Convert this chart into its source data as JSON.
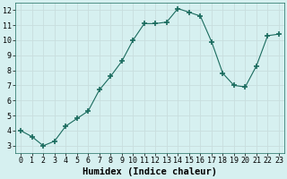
{
  "x": [
    0,
    1,
    2,
    3,
    4,
    5,
    6,
    7,
    8,
    9,
    10,
    11,
    12,
    13,
    14,
    15,
    16,
    17,
    18,
    19,
    20,
    21,
    22,
    23
  ],
  "y": [
    4.0,
    3.6,
    3.0,
    3.3,
    4.3,
    4.8,
    5.3,
    6.7,
    7.6,
    8.6,
    10.0,
    11.1,
    11.1,
    11.2,
    12.1,
    11.85,
    11.6,
    9.9,
    7.8,
    7.0,
    6.9,
    8.3,
    10.3,
    10.4
  ],
  "xlabel": "Humidex (Indice chaleur)",
  "xlim": [
    -0.5,
    23.5
  ],
  "ylim": [
    2.5,
    12.5
  ],
  "yticks": [
    3,
    4,
    5,
    6,
    7,
    8,
    9,
    10,
    11,
    12
  ],
  "xticks": [
    0,
    1,
    2,
    3,
    4,
    5,
    6,
    7,
    8,
    9,
    10,
    11,
    12,
    13,
    14,
    15,
    16,
    17,
    18,
    19,
    20,
    21,
    22,
    23
  ],
  "line_color": "#1a6b5e",
  "marker": "+",
  "marker_size": 4,
  "bg_color": "#d6f0f0",
  "grid_color": "#c8dede",
  "tick_fontsize": 6,
  "xlabel_fontsize": 7.5
}
